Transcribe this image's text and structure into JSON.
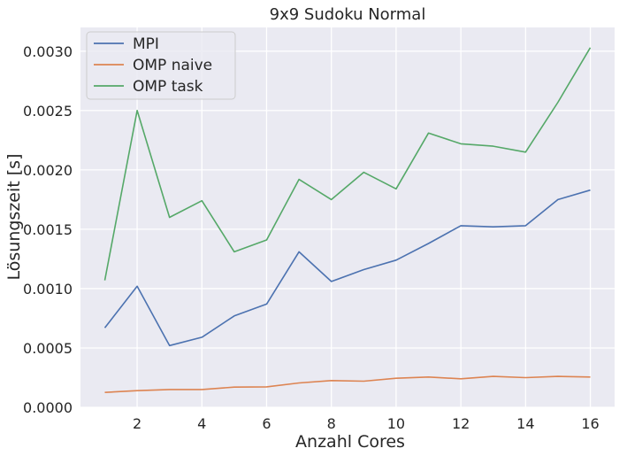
{
  "chart_data": {
    "type": "line",
    "title": "9x9 Sudoku Normal",
    "xlabel": "Anzahl Cores",
    "ylabel": "Lösungszeit [s]",
    "x": [
      1,
      2,
      3,
      4,
      5,
      6,
      7,
      8,
      9,
      10,
      11,
      12,
      13,
      14,
      15,
      16
    ],
    "xlim": [
      0.25,
      16.75
    ],
    "ylim": [
      0,
      0.0032
    ],
    "xticks": [
      2,
      4,
      6,
      8,
      10,
      12,
      14,
      16
    ],
    "xtick_labels": [
      "2",
      "4",
      "6",
      "8",
      "10",
      "12",
      "14",
      "16"
    ],
    "yticks": [
      0,
      0.0005,
      0.001,
      0.0015,
      0.002,
      0.0025,
      0.003
    ],
    "ytick_labels": [
      "0.0000",
      "0.0005",
      "0.0010",
      "0.0015",
      "0.0020",
      "0.0025",
      "0.0030"
    ],
    "grid": true,
    "legend_position": "top-left",
    "background": "#eaeaf2",
    "series": [
      {
        "name": "MPI",
        "color": "#4c72b0",
        "values": [
          0.00067,
          0.00102,
          0.00052,
          0.00059,
          0.00077,
          0.00087,
          0.00131,
          0.00106,
          0.00116,
          0.00124,
          0.00138,
          0.00153,
          0.00152,
          0.00153,
          0.00175,
          0.00183
        ]
      },
      {
        "name": "OMP naive",
        "color": "#dd8452",
        "values": [
          0.000125,
          0.00014,
          0.00015,
          0.00015,
          0.00017,
          0.000172,
          0.000205,
          0.000225,
          0.00022,
          0.000245,
          0.000255,
          0.00024,
          0.00026,
          0.00025,
          0.00026,
          0.000255
        ]
      },
      {
        "name": "OMP task",
        "color": "#55a868",
        "values": [
          0.00107,
          0.0025,
          0.0016,
          0.00174,
          0.00131,
          0.00141,
          0.00192,
          0.00175,
          0.00198,
          0.00184,
          0.00231,
          0.00222,
          0.0022,
          0.00215,
          0.00257,
          0.00303
        ]
      }
    ]
  }
}
